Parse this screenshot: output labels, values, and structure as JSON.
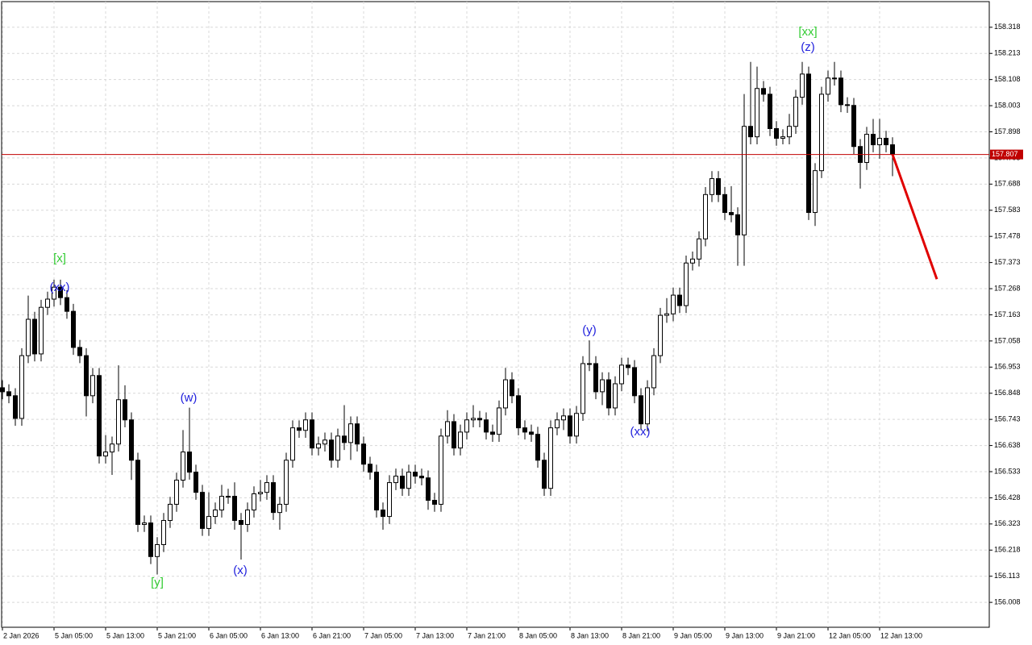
{
  "chart_data": {
    "type": "candlestick",
    "up_color": "#ffffff",
    "down_color": "#000000",
    "grid": true,
    "open": [
      156.88,
      156.87,
      156.854,
      156.838,
      156.747,
      156.999,
      157.145,
      157.006,
      157.193,
      157.226,
      157.274,
      157.232,
      157.177,
      157.032,
      156.999,
      156.838,
      156.919,
      156.596,
      156.612,
      156.644,
      156.822,
      156.741,
      156.579,
      156.321,
      156.327,
      156.192,
      156.24,
      156.337,
      156.402,
      156.499,
      156.612,
      156.531,
      156.45,
      156.305,
      156.353,
      156.379,
      156.434,
      156.434,
      156.337,
      156.321,
      156.379,
      156.444,
      156.45,
      156.489,
      156.369,
      156.402,
      156.579,
      156.709,
      156.699,
      156.741,
      156.628,
      156.644,
      156.66,
      156.579,
      156.676,
      156.65,
      156.725,
      156.644,
      156.563,
      156.531,
      156.379,
      156.353,
      156.489,
      156.515,
      156.466,
      156.531,
      156.515,
      156.508,
      156.418,
      156.402,
      156.676,
      156.734,
      156.628,
      156.692,
      156.741,
      156.747,
      156.741,
      156.692,
      156.683,
      156.789,
      156.902,
      156.838,
      156.709,
      156.692,
      156.683,
      156.579,
      156.466,
      156.709,
      156.741,
      156.757,
      156.676,
      156.767,
      156.967,
      156.967,
      156.854,
      156.902,
      156.789,
      156.886,
      156.961,
      156.951,
      156.838,
      156.725,
      156.87,
      156.999,
      157.161,
      157.167,
      157.242,
      157.2,
      157.371,
      157.387,
      157.468,
      157.646,
      157.71,
      157.646,
      157.574,
      157.565,
      157.484,
      157.92,
      157.878,
      158.072,
      158.049,
      157.911,
      157.872,
      157.878,
      157.92,
      158.037,
      158.13,
      157.574,
      157.742,
      158.049,
      158.114,
      158.114,
      158.007,
      158.004,
      157.839,
      157.775,
      157.888,
      157.846,
      157.872,
      157.846
    ],
    "high": [
      156.91,
      156.9,
      156.884,
      156.868,
      157.029,
      157.24,
      157.175,
      157.223,
      157.256,
      157.304,
      157.304,
      157.262,
      157.207,
      157.062,
      157.029,
      156.949,
      156.949,
      156.68,
      156.674,
      156.96,
      156.88,
      156.771,
      156.609,
      156.357,
      156.357,
      156.27,
      156.367,
      156.432,
      156.529,
      156.7,
      156.79,
      156.561,
      156.48,
      156.45,
      156.409,
      156.48,
      156.464,
      156.49,
      156.367,
      156.409,
      156.474,
      156.5,
      156.519,
      156.519,
      156.432,
      156.609,
      156.739,
      156.739,
      156.771,
      156.771,
      156.674,
      156.69,
      156.69,
      156.706,
      156.8,
      156.755,
      156.755,
      156.674,
      156.593,
      156.561,
      156.409,
      156.519,
      156.545,
      156.545,
      156.561,
      156.561,
      156.545,
      156.538,
      156.448,
      156.706,
      156.78,
      156.764,
      156.722,
      156.771,
      156.8,
      156.777,
      156.771,
      156.722,
      156.819,
      156.95,
      156.932,
      156.868,
      156.739,
      156.722,
      156.713,
      156.609,
      156.739,
      156.771,
      156.787,
      156.787,
      156.797,
      156.997,
      157.06,
      156.997,
      156.932,
      156.932,
      156.916,
      156.991,
      156.991,
      156.981,
      156.868,
      156.9,
      157.029,
      157.191,
      157.23,
      157.272,
      157.272,
      157.401,
      157.417,
      157.498,
      157.676,
      157.74,
      157.74,
      157.676,
      157.68,
      157.595,
      158.05,
      158.179,
      158.16,
      158.102,
      158.079,
      157.941,
      157.908,
      157.97,
      158.067,
      158.179,
      158.16,
      157.772,
      158.079,
      158.144,
      158.179,
      158.144,
      158.037,
      158.034,
      157.869,
      157.918,
      157.95,
      157.95,
      157.902,
      157.876
    ],
    "low": [
      156.84,
      156.824,
      156.808,
      156.717,
      156.717,
      156.969,
      156.976,
      156.976,
      157.163,
      157.196,
      157.202,
      157.147,
      157.002,
      156.969,
      156.755,
      156.808,
      156.566,
      156.566,
      156.52,
      156.614,
      156.711,
      156.5,
      156.291,
      156.291,
      156.162,
      156.12,
      156.21,
      156.307,
      156.372,
      156.469,
      156.501,
      156.42,
      156.275,
      156.275,
      156.323,
      156.349,
      156.404,
      156.3,
      156.18,
      156.291,
      156.349,
      156.414,
      156.42,
      156.339,
      156.3,
      156.372,
      156.549,
      156.669,
      156.669,
      156.598,
      156.598,
      156.614,
      156.549,
      156.549,
      156.62,
      156.58,
      156.614,
      156.533,
      156.501,
      156.349,
      156.3,
      156.323,
      156.459,
      156.436,
      156.436,
      156.485,
      156.478,
      156.38,
      156.372,
      156.372,
      156.646,
      156.598,
      156.598,
      156.662,
      156.711,
      156.711,
      156.662,
      156.653,
      156.653,
      156.759,
      156.808,
      156.679,
      156.662,
      156.653,
      156.549,
      156.436,
      156.436,
      156.679,
      156.7,
      156.646,
      156.646,
      156.737,
      156.937,
      156.824,
      156.8,
      156.759,
      156.759,
      156.856,
      156.921,
      156.808,
      156.7,
      156.695,
      156.84,
      156.969,
      157.131,
      157.137,
      157.17,
      157.17,
      157.341,
      157.357,
      157.438,
      157.616,
      157.616,
      157.544,
      157.535,
      157.36,
      157.36,
      157.848,
      157.848,
      158.019,
      157.881,
      157.842,
      157.848,
      157.848,
      157.89,
      158.007,
      157.544,
      157.52,
      157.712,
      158.019,
      158.084,
      157.977,
      157.974,
      157.809,
      157.67,
      157.745,
      157.816,
      157.79,
      157.816,
      157.72
    ],
    "close": [
      156.87,
      156.854,
      156.838,
      156.747,
      156.999,
      157.145,
      157.006,
      157.193,
      157.226,
      157.274,
      157.232,
      157.177,
      157.032,
      156.999,
      156.838,
      156.919,
      156.596,
      156.612,
      156.644,
      156.822,
      156.741,
      156.579,
      156.321,
      156.327,
      156.192,
      156.24,
      156.337,
      156.402,
      156.499,
      156.612,
      156.531,
      156.45,
      156.305,
      156.353,
      156.379,
      156.434,
      156.434,
      156.337,
      156.321,
      156.379,
      156.444,
      156.45,
      156.489,
      156.369,
      156.402,
      156.579,
      156.709,
      156.699,
      156.741,
      156.628,
      156.644,
      156.66,
      156.579,
      156.676,
      156.65,
      156.725,
      156.644,
      156.563,
      156.531,
      156.379,
      156.353,
      156.489,
      156.515,
      156.466,
      156.531,
      156.515,
      156.508,
      156.418,
      156.402,
      156.676,
      156.734,
      156.628,
      156.692,
      156.741,
      156.747,
      156.741,
      156.692,
      156.683,
      156.789,
      156.902,
      156.838,
      156.709,
      156.692,
      156.683,
      156.579,
      156.466,
      156.709,
      156.741,
      156.757,
      156.676,
      156.767,
      156.967,
      156.967,
      156.854,
      156.902,
      156.789,
      156.886,
      156.961,
      156.951,
      156.838,
      156.725,
      156.87,
      156.999,
      157.161,
      157.167,
      157.242,
      157.2,
      157.371,
      157.387,
      157.468,
      157.646,
      157.71,
      157.646,
      157.574,
      157.565,
      157.484,
      157.92,
      157.878,
      158.072,
      158.049,
      157.911,
      157.872,
      157.878,
      157.92,
      158.037,
      158.13,
      157.574,
      157.742,
      158.049,
      158.114,
      158.114,
      158.007,
      158.004,
      157.839,
      157.775,
      157.888,
      157.846,
      157.872,
      157.846,
      157.807
    ],
    "ylim": [
      155.908,
      158.421
    ],
    "yticks": [
      158.318,
      158.213,
      158.108,
      158.003,
      157.898,
      157.793,
      157.688,
      157.583,
      157.478,
      157.373,
      157.268,
      157.163,
      157.058,
      156.953,
      156.848,
      156.743,
      156.638,
      156.533,
      156.428,
      156.323,
      156.218,
      156.113,
      156.008
    ],
    "xticks": [
      {
        "value": 1,
        "label": "2 Jan 2026"
      },
      {
        "value": 9,
        "label": "5 Jan 05:00"
      },
      {
        "value": 17,
        "label": "5 Jan 13:00"
      },
      {
        "value": 25,
        "label": "5 Jan 21:00"
      },
      {
        "value": 33,
        "label": "6 Jan 05:00"
      },
      {
        "value": 41,
        "label": "6 Jan 13:00"
      },
      {
        "value": 49,
        "label": "6 Jan 21:00"
      },
      {
        "value": 57,
        "label": "7 Jan 05:00"
      },
      {
        "value": 65,
        "label": "7 Jan 13:00"
      },
      {
        "value": 73,
        "label": "7 Jan 21:00"
      },
      {
        "value": 81,
        "label": "8 Jan 05:00"
      },
      {
        "value": 89,
        "label": "8 Jan 13:00"
      },
      {
        "value": 97,
        "label": "8 Jan 21:00"
      },
      {
        "value": 105,
        "label": "9 Jan 05:00"
      },
      {
        "value": 113,
        "label": "9 Jan 13:00"
      },
      {
        "value": 121,
        "label": "9 Jan 21:00"
      },
      {
        "value": 129,
        "label": "12 Jan 05:00"
      },
      {
        "value": 137,
        "label": "12 Jan 13:00"
      }
    ],
    "price_line": {
      "value": 157.807,
      "color": "#c00000"
    },
    "forecast": {
      "color": "#e00000",
      "values": [
        157.807,
        157.306
      ]
    },
    "annotations": [
      {
        "text": "[x]",
        "color": "#33cc33"
      },
      {
        "text": "(xx)",
        "color": "#2222dd"
      },
      {
        "text": "[y]",
        "color": "#33cc33"
      },
      {
        "text": "(w)",
        "color": "#2222dd"
      },
      {
        "text": "(x)",
        "color": "#2222dd"
      },
      {
        "text": "(y)",
        "color": "#2222dd"
      },
      {
        "text": "(xx)",
        "color": "#2222dd"
      },
      {
        "text": "[xx]",
        "color": "#33cc33"
      },
      {
        "text": "(z)",
        "color": "#2222dd"
      }
    ]
  }
}
